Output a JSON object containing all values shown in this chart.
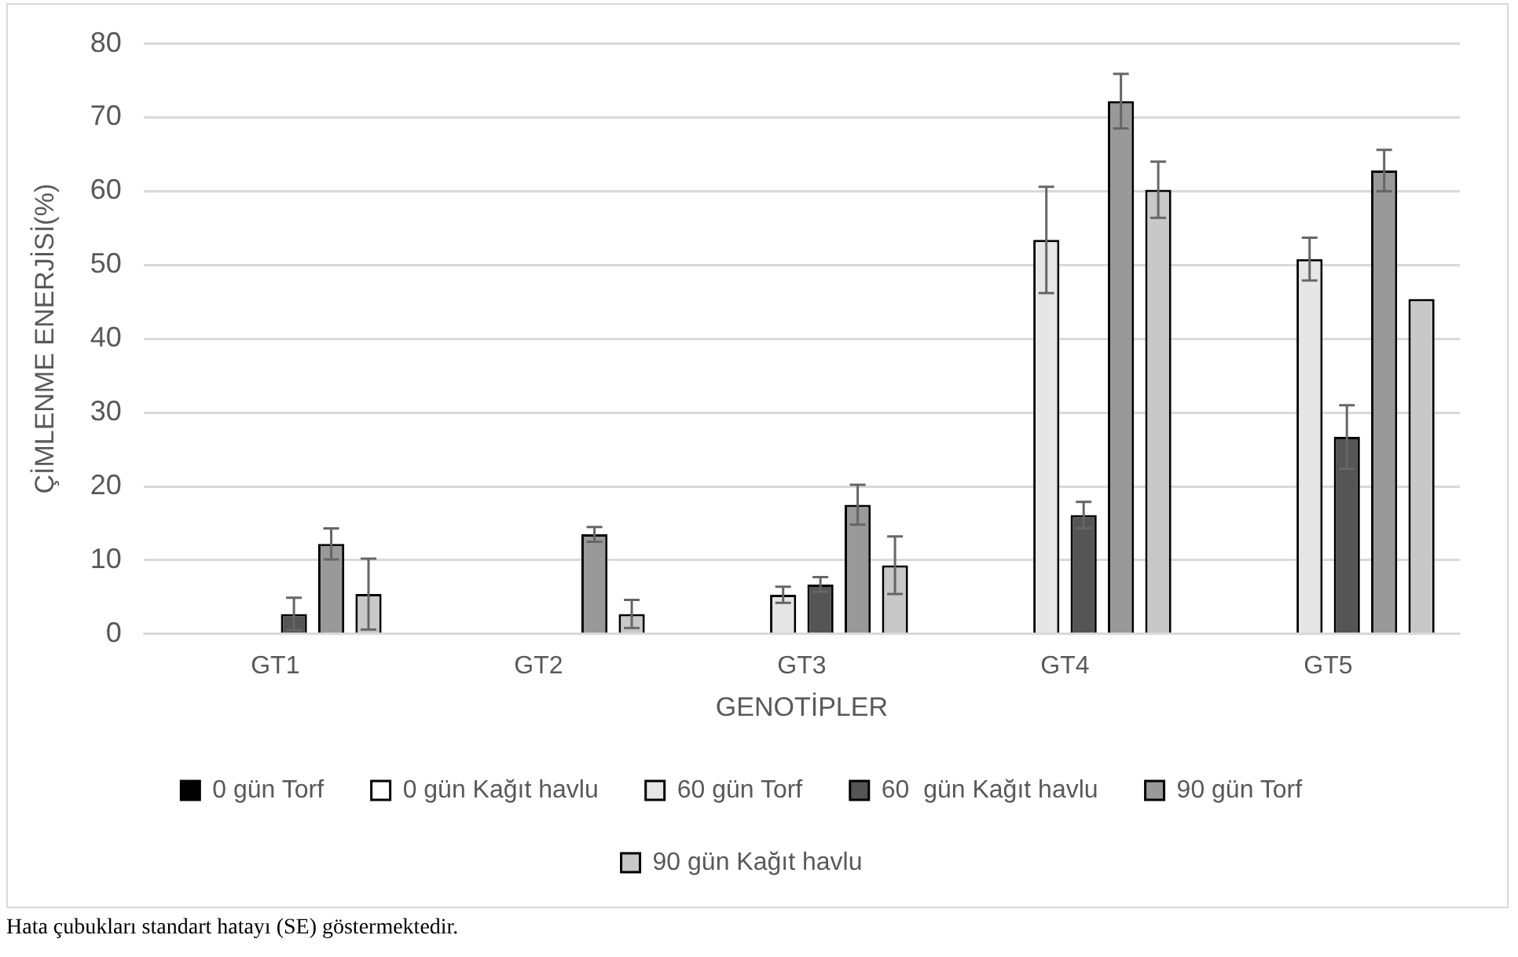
{
  "chart_data": {
    "type": "bar",
    "xlabel": "GENOTİPLER",
    "ylabel": "ÇİMLENME ENERJİSİ(%)",
    "categories": [
      "GT1",
      "GT2",
      "GT3",
      "GT4",
      "GT5"
    ],
    "series": [
      {
        "name": "0 gün Torf",
        "color": "#000000",
        "values": [
          0,
          0,
          0,
          0,
          0
        ]
      },
      {
        "name": "0 gün Kağıt havlu",
        "color": "#ffffff",
        "values": [
          0,
          0,
          0,
          0,
          0
        ]
      },
      {
        "name": "60 gün Torf",
        "color": "#e6e6e6",
        "values": [
          0,
          0,
          5.3,
          53.4,
          50.8
        ],
        "errors": [
          null,
          null,
          1.1,
          7.2,
          2.9
        ]
      },
      {
        "name": "60  gün Kağıt havlu",
        "color": "#555555",
        "values": [
          2.7,
          0,
          6.7,
          16.1,
          26.7
        ],
        "errors": [
          2.2,
          null,
          1,
          1.8,
          4.3
        ]
      },
      {
        "name": "90 gün Torf",
        "color": "#999999",
        "values": [
          12.2,
          13.5,
          17.5,
          72.2,
          62.8
        ],
        "errors": [
          2.1,
          1,
          2.7,
          3.7,
          2.8
        ]
      },
      {
        "name": "90 gün Kağıt havlu",
        "color": "#c8c8c8",
        "values": [
          5.4,
          2.7,
          9.3,
          60.2,
          45.4
        ],
        "errors": [
          4.8,
          1.9,
          3.9,
          3.8,
          null
        ]
      }
    ],
    "ylim": [
      0,
      80
    ],
    "yticks": [
      0,
      10,
      20,
      30,
      40,
      50,
      60,
      70,
      80
    ],
    "grid": "y",
    "legend": "bottom",
    "annotations": [
      "Hata çubukları standart hatayı (SE) göstermektedir."
    ]
  }
}
